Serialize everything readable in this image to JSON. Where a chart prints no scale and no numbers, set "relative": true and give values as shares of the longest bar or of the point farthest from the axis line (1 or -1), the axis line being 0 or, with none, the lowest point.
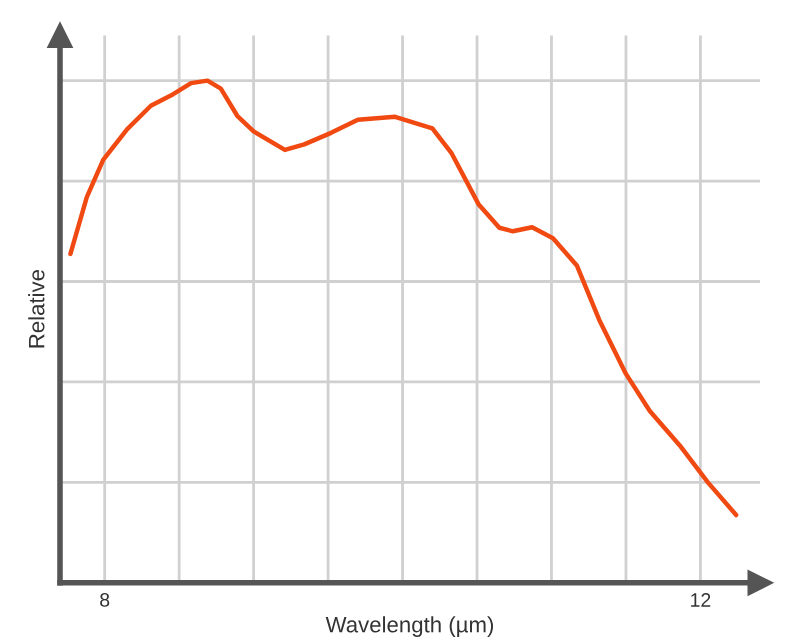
{
  "chart_data": {
    "type": "line",
    "xlabel": "Wavelength (µm)",
    "ylabel": "Relative",
    "relative": true,
    "grid": true,
    "marker": "none",
    "line_style": "solid",
    "xlim": [
      7.7,
      12.4
    ],
    "xticks": [
      8,
      {
        "value": 8.5,
        "label": null
      },
      {
        "value": 9,
        "label": null
      },
      {
        "value": 9.5,
        "label": null
      },
      {
        "value": 10,
        "label": null
      },
      {
        "value": 10.5,
        "label": null
      },
      {
        "value": 11,
        "label": null
      },
      {
        "value": 11.5,
        "label": null
      },
      12
    ],
    "series": [
      {
        "color": "#f04a12",
        "x": [
          7.77,
          7.88,
          7.99,
          8.15,
          8.31,
          8.46,
          8.58,
          8.69,
          8.78,
          8.89,
          9.0,
          9.21,
          9.34,
          9.52,
          9.7,
          9.95,
          10.2,
          10.33,
          10.51,
          10.65,
          10.74,
          10.87,
          11.01,
          11.17,
          11.32,
          11.5,
          11.66,
          11.86,
          12.05,
          12.24
        ],
        "values": [
          0.655,
          0.768,
          0.842,
          0.903,
          0.95,
          0.973,
          0.995,
          1.0,
          0.984,
          0.93,
          0.899,
          0.862,
          0.873,
          0.896,
          0.922,
          0.928,
          0.905,
          0.855,
          0.754,
          0.707,
          0.7,
          0.708,
          0.686,
          0.632,
          0.524,
          0.416,
          0.342,
          0.274,
          0.2,
          0.135
        ]
      }
    ]
  }
}
